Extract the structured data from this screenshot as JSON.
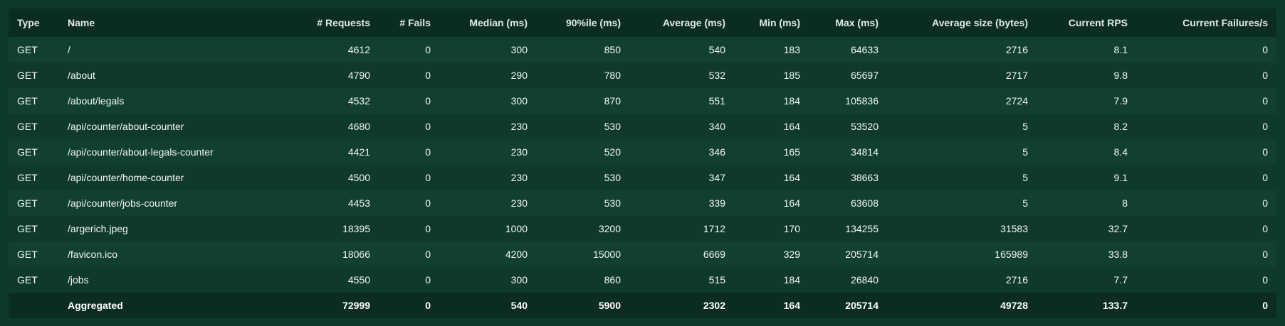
{
  "table": {
    "columns": [
      "Type",
      "Name",
      "# Requests",
      "# Fails",
      "Median (ms)",
      "90%ile (ms)",
      "Average (ms)",
      "Min (ms)",
      "Max (ms)",
      "Average size (bytes)",
      "Current RPS",
      "Current Failures/s"
    ],
    "rows": [
      [
        "GET",
        "/",
        "4612",
        "0",
        "300",
        "850",
        "540",
        "183",
        "64633",
        "2716",
        "8.1",
        "0"
      ],
      [
        "GET",
        "/about",
        "4790",
        "0",
        "290",
        "780",
        "532",
        "185",
        "65697",
        "2717",
        "9.8",
        "0"
      ],
      [
        "GET",
        "/about/legals",
        "4532",
        "0",
        "300",
        "870",
        "551",
        "184",
        "105836",
        "2724",
        "7.9",
        "0"
      ],
      [
        "GET",
        "/api/counter/about-counter",
        "4680",
        "0",
        "230",
        "530",
        "340",
        "164",
        "53520",
        "5",
        "8.2",
        "0"
      ],
      [
        "GET",
        "/api/counter/about-legals-counter",
        "4421",
        "0",
        "230",
        "520",
        "346",
        "165",
        "34814",
        "5",
        "8.4",
        "0"
      ],
      [
        "GET",
        "/api/counter/home-counter",
        "4500",
        "0",
        "230",
        "530",
        "347",
        "164",
        "38663",
        "5",
        "9.1",
        "0"
      ],
      [
        "GET",
        "/api/counter/jobs-counter",
        "4453",
        "0",
        "230",
        "530",
        "339",
        "164",
        "63608",
        "5",
        "8",
        "0"
      ],
      [
        "GET",
        "/argerich.jpeg",
        "18395",
        "0",
        "1000",
        "3200",
        "1712",
        "170",
        "134255",
        "31583",
        "32.7",
        "0"
      ],
      [
        "GET",
        "/favicon.ico",
        "18066",
        "0",
        "4200",
        "15000",
        "6669",
        "329",
        "205714",
        "165989",
        "33.8",
        "0"
      ],
      [
        "GET",
        "/jobs",
        "4550",
        "0",
        "300",
        "860",
        "515",
        "184",
        "26840",
        "2716",
        "7.7",
        "0"
      ]
    ],
    "aggregated": [
      "",
      "Aggregated",
      "72999",
      "0",
      "540",
      "5900",
      "2302",
      "164",
      "205714",
      "49728",
      "133.7",
      "0"
    ]
  }
}
